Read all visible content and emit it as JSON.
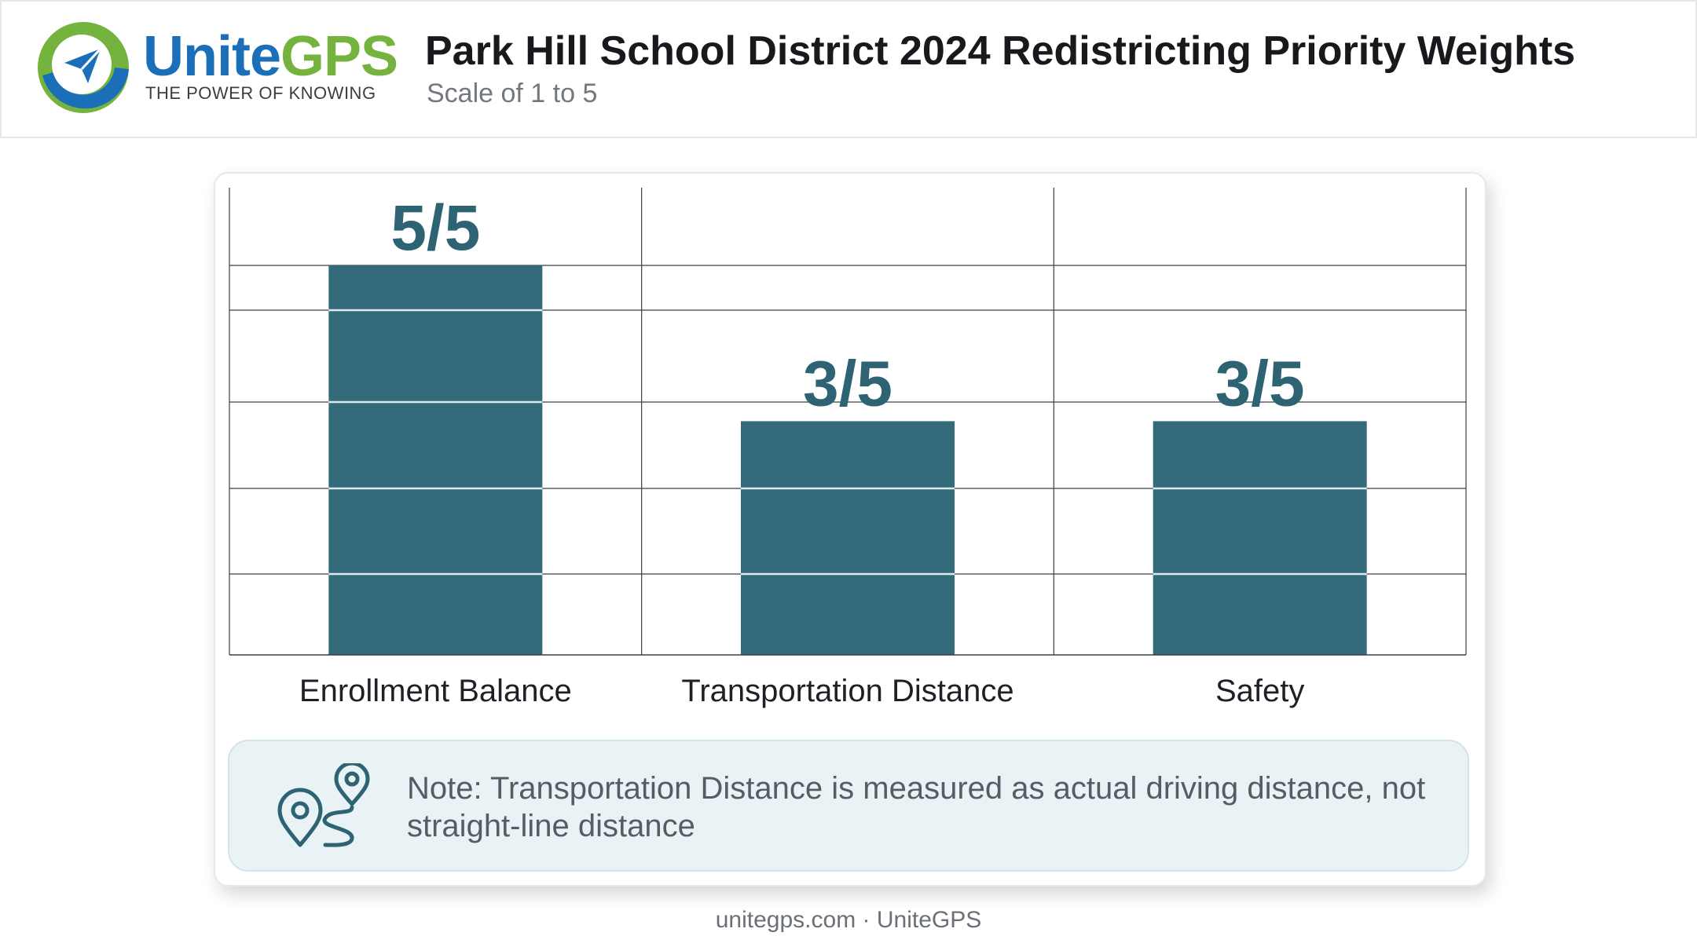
{
  "header": {
    "brand_part1": "Unite",
    "brand_part2": "GPS",
    "tagline": "THE POWER OF KNOWING",
    "title": "Park Hill School District 2024 Redistricting Priority Weights",
    "subtitle": "Scale of 1 to 5"
  },
  "colors": {
    "bar": "#336b7a",
    "label": "#2e6373",
    "brand_blue": "#1b6fb8",
    "brand_green": "#74b33e"
  },
  "chart_data": {
    "type": "bar",
    "title": "Park Hill School District 2024 Redistricting Priority Weights",
    "subtitle": "Scale of 1 to 5",
    "categories": [
      "Enrollment Balance",
      "Transportation Distance",
      "Safety"
    ],
    "values": [
      5,
      3,
      3
    ],
    "value_labels": [
      "5/5",
      "3/5",
      "3/5"
    ],
    "ylim": [
      0,
      5
    ],
    "grid": true,
    "legend": "none"
  },
  "note": {
    "text": "Note: Transportation Distance is measured as actual driving distance, not straight-line distance",
    "icon": "route-pins-icon"
  },
  "footer": "unitegps.com · UniteGPS"
}
